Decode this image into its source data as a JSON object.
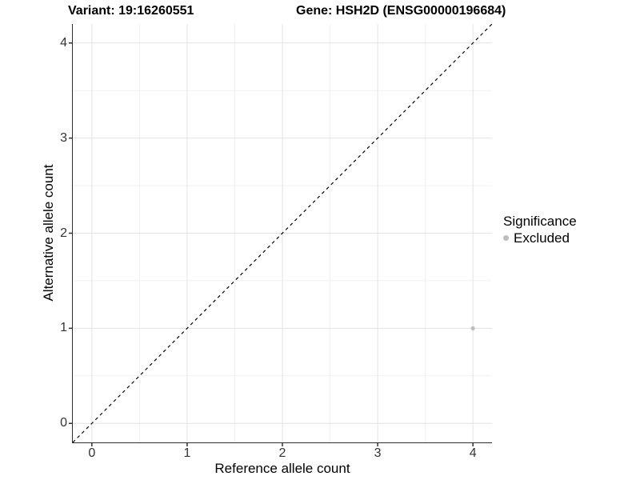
{
  "chart_data": {
    "type": "scatter",
    "title_left": "Variant: 19:16260551",
    "title_right": "Gene: HSH2D (ENSG00000196684)",
    "xlabel": "Reference allele count",
    "ylabel": "Alternative allele count",
    "xlim": [
      -0.2,
      4.2
    ],
    "ylim": [
      -0.2,
      4.2
    ],
    "xticks": [
      0,
      1,
      2,
      3,
      4
    ],
    "yticks": [
      0,
      1,
      2,
      3,
      4
    ],
    "xtick_labels": [
      "0",
      "1",
      "2",
      "3",
      "4"
    ],
    "ytick_labels": [
      "0",
      "1",
      "2",
      "3",
      "4"
    ],
    "xminor": [
      0.5,
      1.5,
      2.5,
      3.5
    ],
    "yminor": [
      0.5,
      1.5,
      2.5,
      3.5
    ],
    "grid": "major+minor",
    "identity_line": {
      "slope": 1,
      "intercept": 0,
      "style": "dashed",
      "color": "#000000"
    },
    "series": [
      {
        "name": "Excluded",
        "color": "#bdbdbd",
        "points": [
          {
            "x": 4,
            "y": 1
          }
        ]
      }
    ],
    "legend": {
      "title": "Significance",
      "position": "right",
      "entries": [
        {
          "label": "Excluded",
          "color": "#bdbdbd"
        }
      ]
    },
    "colors": {
      "grid_major": "#e3e3e3",
      "grid_minor": "#f1f1f1",
      "axis_line": "#2f2f2f",
      "tick_text": "#333333"
    }
  }
}
